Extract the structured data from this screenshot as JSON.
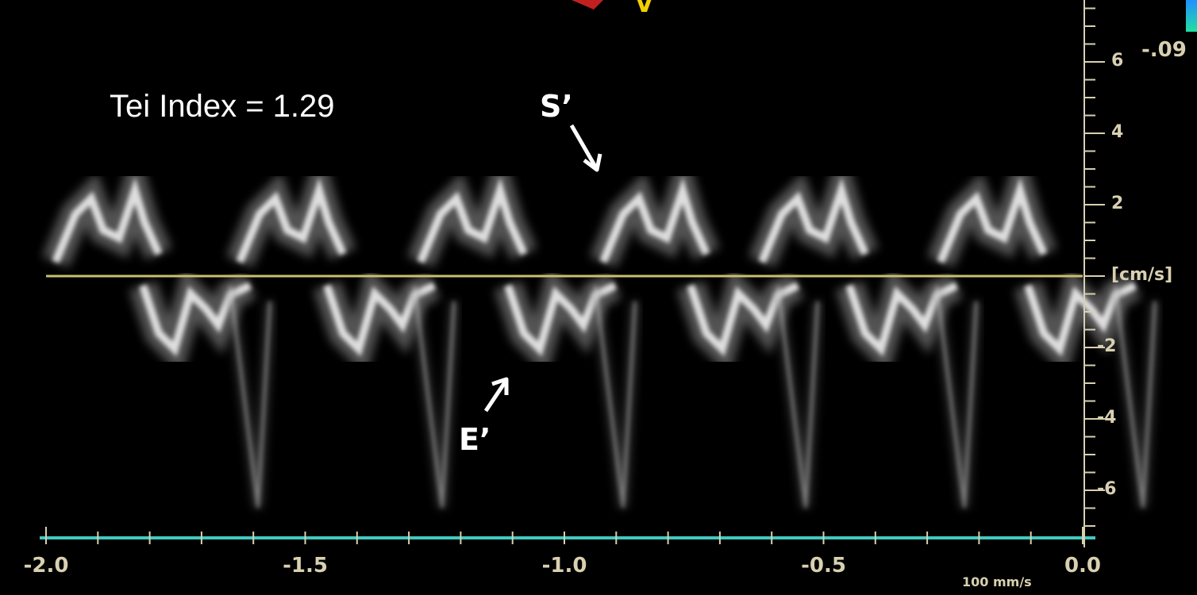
{
  "annotations": {
    "tei_index": "Tei Index = 1.29",
    "s_prime": "S’",
    "e_prime": "E’"
  },
  "velocity_axis": {
    "unit": "[cm/s]",
    "top_value": "-.09",
    "ticks": [
      {
        "value": 6,
        "label": "6"
      },
      {
        "value": 4,
        "label": "4"
      },
      {
        "value": 2,
        "label": "2"
      },
      {
        "value": -2,
        "label": "-2"
      },
      {
        "value": -4,
        "label": "-4"
      },
      {
        "value": -6,
        "label": "-6"
      }
    ]
  },
  "time_axis": {
    "ticks": [
      {
        "value": -2.0,
        "label": "-2.0"
      },
      {
        "value": -1.5,
        "label": "-1.5"
      },
      {
        "value": -1.0,
        "label": "-1.0"
      },
      {
        "value": -0.5,
        "label": "-0.5"
      },
      {
        "value": 0.0,
        "label": "0.0"
      }
    ]
  },
  "sweep_speed": "100 mm/s",
  "marker": "V",
  "colors": {
    "background": "#000000",
    "baseline": "#c8c070",
    "time_axis": "#40c8c0",
    "axis_text": "#d8d0b0",
    "colorbar_top": "#1e90ff",
    "colorbar_bottom": "#20e0a0"
  }
}
